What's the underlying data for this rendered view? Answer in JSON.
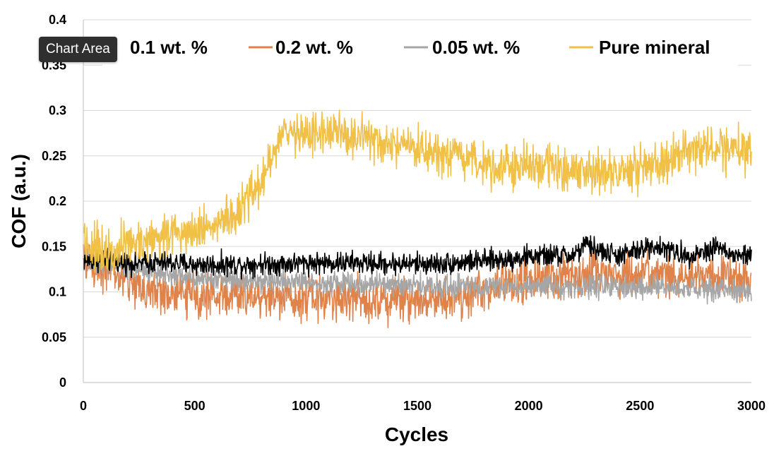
{
  "tooltip": {
    "text": "Chart Area"
  },
  "colors": {
    "background": "#ffffff",
    "grid": "#d9d9d9",
    "axis": "#bfbfbf"
  },
  "chart_data": {
    "type": "line",
    "title": "",
    "xlabel": "Cycles",
    "ylabel": "COF (a.u.)",
    "xlim": [
      0,
      3000
    ],
    "ylim": [
      0,
      0.4
    ],
    "x_ticks": [
      0,
      500,
      1000,
      1500,
      2000,
      2500,
      3000
    ],
    "y_ticks": [
      0,
      0.05,
      0.1,
      0.15,
      0.2,
      0.25,
      0.3,
      0.35,
      0.4
    ],
    "y_tick_labels": [
      "0",
      "0.05",
      "0.1",
      "0.15",
      "0.2",
      "0.25",
      "0.3",
      "0.35",
      "0.4"
    ],
    "grid": "horizontal",
    "legend_position": "top",
    "series": [
      {
        "name": "0.1 wt. %",
        "color": "#000000",
        "noise": 0.006,
        "x": [
          0,
          100,
          200,
          300,
          400,
          500,
          600,
          700,
          800,
          900,
          1000,
          1200,
          1400,
          1600,
          1800,
          1900,
          2000,
          2100,
          2200,
          2260,
          2320,
          2400,
          2500,
          2550,
          2600,
          2700,
          2800,
          2850,
          2900,
          3000
        ],
        "y": [
          0.135,
          0.135,
          0.132,
          0.132,
          0.132,
          0.13,
          0.13,
          0.13,
          0.131,
          0.131,
          0.132,
          0.132,
          0.131,
          0.131,
          0.134,
          0.136,
          0.139,
          0.14,
          0.14,
          0.152,
          0.145,
          0.14,
          0.145,
          0.152,
          0.148,
          0.14,
          0.145,
          0.152,
          0.14,
          0.14
        ]
      },
      {
        "name": "0.2 wt. %",
        "color": "#e0834a",
        "noise": 0.012,
        "x": [
          0,
          100,
          200,
          300,
          400,
          500,
          600,
          800,
          1000,
          1200,
          1400,
          1600,
          1700,
          1800,
          1900,
          2000,
          2200,
          2300,
          2500,
          2700,
          2900,
          3000
        ],
        "y": [
          0.135,
          0.125,
          0.112,
          0.1,
          0.098,
          0.097,
          0.096,
          0.096,
          0.094,
          0.093,
          0.092,
          0.093,
          0.095,
          0.102,
          0.108,
          0.112,
          0.118,
          0.122,
          0.117,
          0.116,
          0.115,
          0.112
        ]
      },
      {
        "name": "0.05 wt. %",
        "color": "#a6a6a6",
        "noise": 0.006,
        "x": [
          0,
          100,
          200,
          300,
          400,
          500,
          600,
          700,
          800,
          1000,
          1200,
          1400,
          1600,
          1800,
          2000,
          2200,
          2400,
          2600,
          2800,
          3000
        ],
        "y": [
          0.136,
          0.132,
          0.126,
          0.122,
          0.119,
          0.116,
          0.115,
          0.114,
          0.113,
          0.111,
          0.109,
          0.108,
          0.106,
          0.106,
          0.105,
          0.106,
          0.105,
          0.104,
          0.102,
          0.1
        ]
      },
      {
        "name": "Pure mineral",
        "color": "#f0c146",
        "noise": 0.012,
        "x": [
          0,
          10,
          30,
          100,
          200,
          300,
          400,
          500,
          600,
          700,
          750,
          800,
          850,
          900,
          950,
          1000,
          1100,
          1200,
          1300,
          1400,
          1500,
          1600,
          1700,
          1800,
          1900,
          2000,
          2100,
          2200,
          2300,
          2400,
          2500,
          2600,
          2700,
          2800,
          2900,
          3000
        ],
        "y": [
          0.175,
          0.155,
          0.15,
          0.148,
          0.152,
          0.158,
          0.165,
          0.17,
          0.175,
          0.185,
          0.205,
          0.225,
          0.25,
          0.272,
          0.278,
          0.275,
          0.275,
          0.272,
          0.265,
          0.26,
          0.255,
          0.25,
          0.245,
          0.242,
          0.24,
          0.238,
          0.237,
          0.236,
          0.232,
          0.23,
          0.236,
          0.242,
          0.255,
          0.258,
          0.258,
          0.256
        ]
      }
    ]
  }
}
